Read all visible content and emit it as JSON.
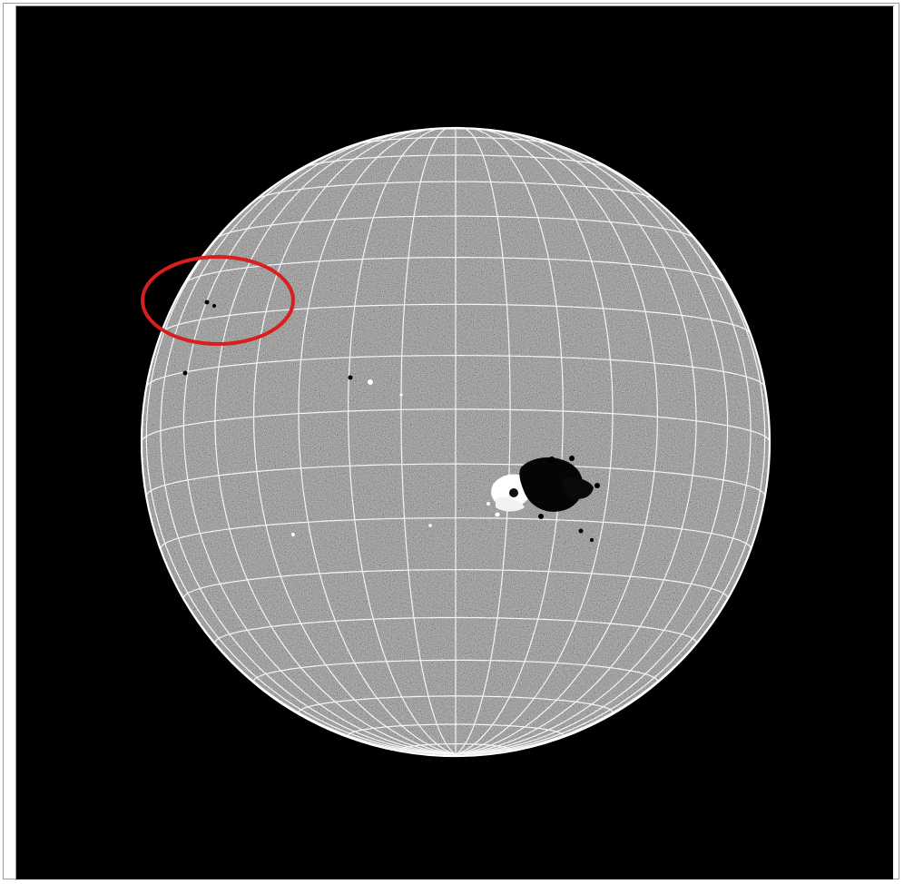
{
  "image": {
    "subject": "solar-disk-magnetogram",
    "background_color": "#000000",
    "disk_color": "#7a7a7a",
    "grid_color": "#ffffff",
    "highlight_color": "#d81e1e",
    "positive_polarity_color": "#ffffff",
    "negative_polarity_color": "#000000"
  }
}
